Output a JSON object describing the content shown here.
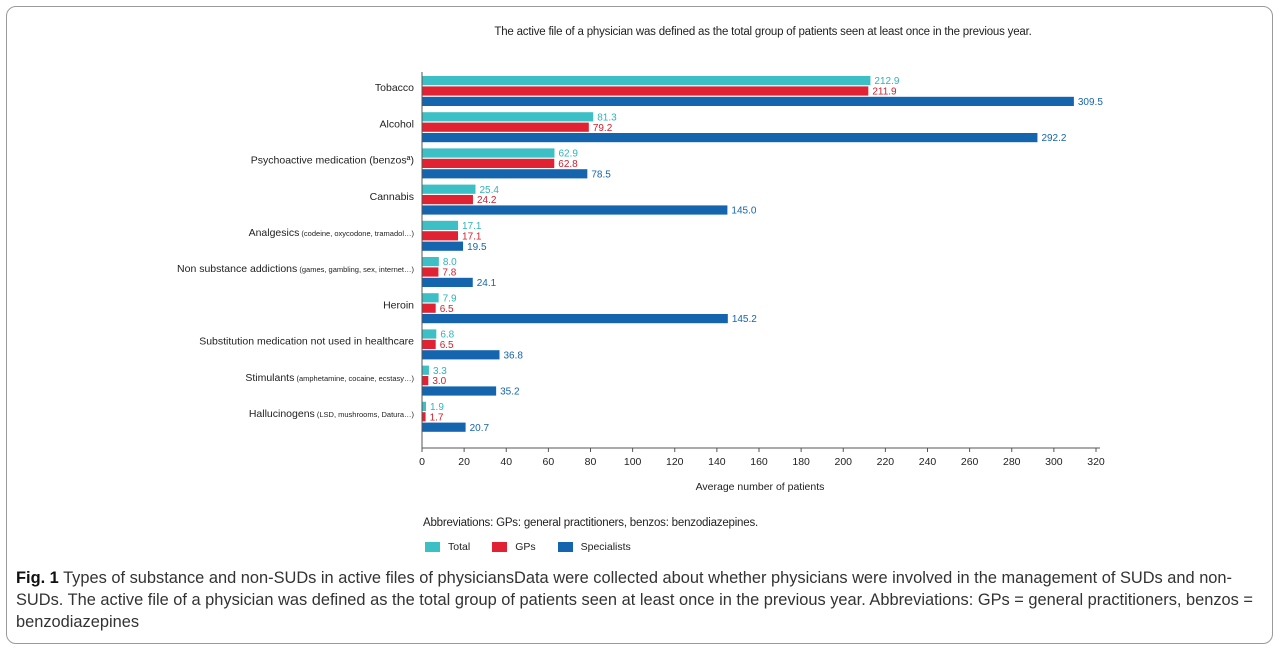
{
  "figure": {
    "note": "The active file of a physician was defined as the total group of patients seen at least once in the previous year.",
    "abbreviations": "Abbreviations: GPs: general practitioners, benzos: benzodiazepines.",
    "caption_label": "Fig. 1",
    "caption_text": "Types of substance and non-SUDs in active files of physiciansData were collected about whether physicians were involved in the management of SUDs and non-SUDs. The active file of a physician was defined as the total group of patients seen at least once in the previous year. Abbreviations: GPs = general practitioners, benzos = benzodiazepines"
  },
  "chart_data": {
    "type": "bar",
    "orientation": "horizontal",
    "xlabel": "Average number of patients",
    "xlim": [
      0,
      320
    ],
    "xticks": [
      0,
      20,
      40,
      60,
      80,
      100,
      120,
      140,
      160,
      180,
      200,
      220,
      240,
      260,
      280,
      300,
      320
    ],
    "grid": false,
    "legend_position": "bottom-left",
    "categories": [
      {
        "main": "Tobacco",
        "detail": ""
      },
      {
        "main": "Alcohol",
        "detail": ""
      },
      {
        "main": "Psychoactive medication (benzosª)",
        "detail": ""
      },
      {
        "main": "Cannabis",
        "detail": ""
      },
      {
        "main": "Analgesics",
        "detail": "(codeine, oxycodone, tramadol…)"
      },
      {
        "main": "Non substance addictions",
        "detail": "(games, gambling, sex, internet…)"
      },
      {
        "main": "Heroin",
        "detail": ""
      },
      {
        "main": "Substitution medication not used in healthcare",
        "detail": ""
      },
      {
        "main": "Stimulants",
        "detail": "(amphetamine, cocaine, ecstasy…)"
      },
      {
        "main": "Hallucinogens",
        "detail": "(LSD, mushrooms, Datura…)"
      }
    ],
    "series": [
      {
        "name": "Total",
        "color": "#3dbfc6",
        "label_color": "#2fb3bb",
        "values": [
          212.9,
          81.3,
          62.9,
          25.4,
          17.1,
          8.0,
          7.9,
          6.8,
          3.3,
          1.9
        ],
        "labels": [
          "212.9",
          "81.3",
          "62.9",
          "25.4",
          "17.1",
          "8.0",
          "7.9",
          "6.8",
          "3.3",
          "1.9"
        ]
      },
      {
        "name": "GPs",
        "color": "#e02232",
        "label_color": "#d0202e",
        "values": [
          211.9,
          79.2,
          62.8,
          24.2,
          17.1,
          7.8,
          6.5,
          6.5,
          3.0,
          1.7
        ],
        "labels": [
          "211.9",
          "79.2",
          "62.8",
          "24.2",
          "17.1",
          "7.8",
          "6.5",
          "6.5",
          "3.0",
          "1.7"
        ]
      },
      {
        "name": "Specialists",
        "color": "#1565ae",
        "label_color": "#1565ae",
        "values": [
          309.5,
          292.2,
          78.5,
          145.0,
          19.5,
          24.1,
          145.2,
          36.8,
          35.2,
          20.7
        ],
        "labels": [
          "309.5",
          "292.2",
          "78.5",
          "145.0",
          "19.5",
          "24.1",
          "145.2",
          "36.8",
          "35.2",
          "20.7"
        ]
      }
    ]
  }
}
